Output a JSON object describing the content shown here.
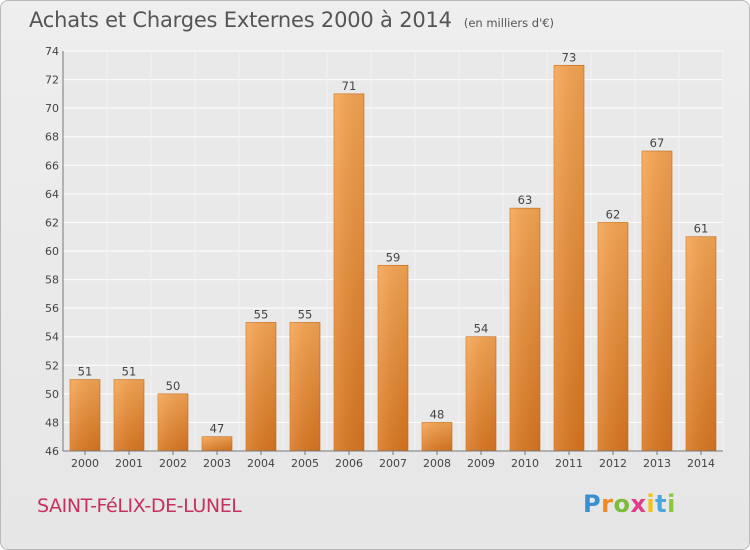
{
  "title": "Achats et Charges Externes 2000 à 2014",
  "subtitle": "(en milliers d'€)",
  "footer": {
    "place": "SAINT-FéLIX-DE-LUNEL",
    "logo": "Proxiti"
  },
  "colors": {
    "bar_top": "#f6a552",
    "bar_bottom": "#d9761f",
    "place_text": "#c8315f"
  },
  "chart_data": {
    "type": "bar",
    "title": "Achats et Charges Externes 2000 à 2014",
    "subtitle": "(en milliers d'€)",
    "categories": [
      "2000",
      "2001",
      "2002",
      "2003",
      "2004",
      "2005",
      "2006",
      "2007",
      "2008",
      "2009",
      "2010",
      "2011",
      "2012",
      "2013",
      "2014"
    ],
    "values": [
      51,
      51,
      50,
      47,
      55,
      55,
      71,
      59,
      48,
      54,
      63,
      73,
      62,
      67,
      61
    ],
    "ylim": [
      46,
      74
    ],
    "yticks": [
      46,
      48,
      50,
      52,
      54,
      56,
      58,
      60,
      62,
      64,
      66,
      68,
      70,
      72,
      74
    ],
    "xlabel": "",
    "ylabel": "",
    "grid": true,
    "data_labels": true
  }
}
